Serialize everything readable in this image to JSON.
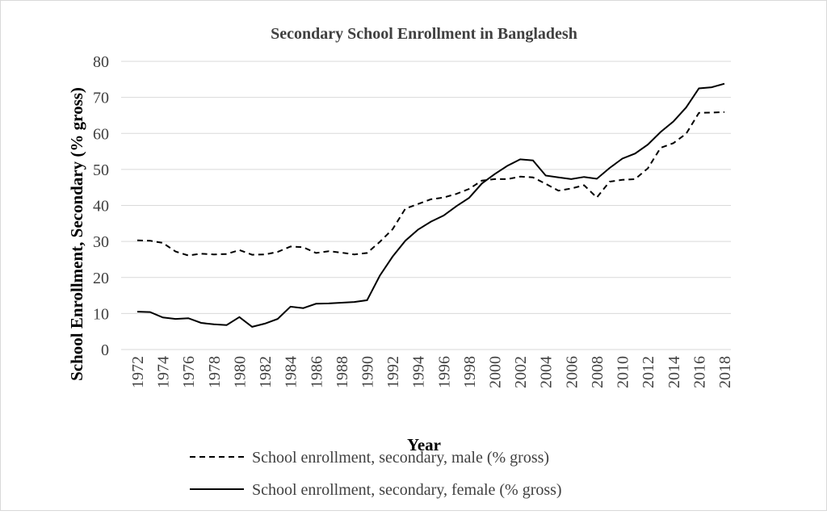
{
  "chart_data": {
    "type": "line",
    "title": "Secondary School Enrollment in Bangladesh",
    "x_label": "Year",
    "y_label": "School Enrollment, Secondary (% gross)",
    "x": [
      1972,
      1973,
      1974,
      1975,
      1976,
      1977,
      1978,
      1979,
      1980,
      1981,
      1982,
      1983,
      1984,
      1985,
      1986,
      1987,
      1988,
      1989,
      1990,
      1991,
      1992,
      1993,
      1994,
      1995,
      1996,
      1997,
      1998,
      1999,
      2000,
      2001,
      2002,
      2003,
      2004,
      2005,
      2006,
      2007,
      2008,
      2009,
      2010,
      2011,
      2012,
      2013,
      2014,
      2015,
      2016,
      2017,
      2018
    ],
    "xlim": [
      1972,
      2018
    ],
    "xticks": [
      1972,
      1974,
      1976,
      1978,
      1980,
      1982,
      1984,
      1986,
      1988,
      1990,
      1992,
      1994,
      1996,
      1998,
      2000,
      2002,
      2004,
      2006,
      2008,
      2010,
      2012,
      2014,
      2016,
      2018
    ],
    "ylim": [
      0,
      80
    ],
    "yticks": [
      0,
      10,
      20,
      30,
      40,
      50,
      60,
      70,
      80
    ],
    "grid": true,
    "legend": "bottom",
    "series": [
      {
        "name": "School enrollment, secondary, male (% gross)",
        "color": "#000000",
        "line_style": "dashed",
        "values": [
          30.3,
          30.2,
          29.6,
          27.2,
          26.1,
          26.6,
          26.4,
          26.5,
          27.6,
          26.3,
          26.4,
          27.1,
          28.6,
          28.4,
          26.8,
          27.3,
          26.9,
          26.4,
          26.8,
          29.9,
          33.4,
          39.1,
          40.4,
          41.7,
          42.2,
          43.2,
          44.6,
          46.9,
          47.3,
          47.3,
          48.0,
          47.8,
          46.0,
          44.1,
          44.7,
          45.6,
          42.2,
          46.6,
          47.1,
          47.3,
          50.3,
          56.0,
          57.3,
          59.9,
          65.7,
          65.8,
          65.9
        ]
      },
      {
        "name": "School enrollment, secondary, female (% gross)",
        "color": "#000000",
        "line_style": "solid",
        "values": [
          10.5,
          10.4,
          8.9,
          8.5,
          8.7,
          7.4,
          7.0,
          6.8,
          9.0,
          6.3,
          7.2,
          8.5,
          11.9,
          11.5,
          12.7,
          12.8,
          13.0,
          13.2,
          13.7,
          20.5,
          25.8,
          30.2,
          33.3,
          35.5,
          37.2,
          39.8,
          42.1,
          46.1,
          48.7,
          51.0,
          52.8,
          52.5,
          48.3,
          47.8,
          47.3,
          47.9,
          47.4,
          50.4,
          53.0,
          54.4,
          56.9,
          60.4,
          63.3,
          67.2,
          72.5,
          72.8,
          73.8
        ]
      }
    ]
  }
}
